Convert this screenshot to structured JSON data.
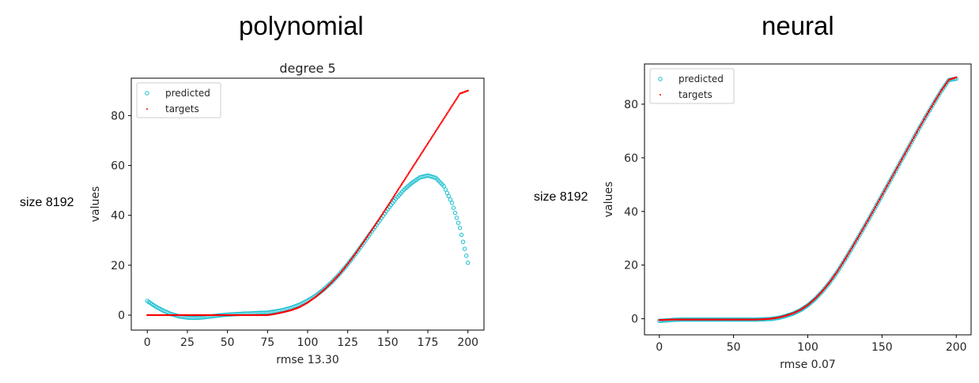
{
  "panels": {
    "left": {
      "heading": "polynomial",
      "side_label": "size 8192"
    },
    "right": {
      "heading": "neural",
      "side_label": "size 8192"
    }
  },
  "colors": {
    "predicted": "#17becf",
    "targets": "#ff0000",
    "axis": "#000000"
  },
  "chart_data": [
    {
      "type": "scatter",
      "title": "degree 5",
      "xlabel": "rmse 13.30",
      "ylabel": "values",
      "xlim": [
        -10,
        210
      ],
      "ylim": [
        -6,
        95
      ],
      "xticks": [
        0,
        25,
        50,
        75,
        100,
        125,
        150,
        175,
        200
      ],
      "yticks": [
        0,
        20,
        40,
        60,
        80
      ],
      "legend": {
        "position": "top-left",
        "entries": [
          "predicted",
          "targets"
        ]
      },
      "grid": false,
      "series": [
        {
          "name": "predicted",
          "marker": "hollow-circle",
          "x": [
            0,
            5,
            10,
            15,
            20,
            25,
            30,
            35,
            40,
            45,
            50,
            55,
            60,
            65,
            70,
            75,
            80,
            85,
            90,
            95,
            100,
            105,
            110,
            115,
            120,
            125,
            130,
            135,
            140,
            145,
            150,
            155,
            160,
            165,
            170,
            175,
            180,
            185,
            190,
            195,
            200
          ],
          "y": [
            5.7,
            3.5,
            1.8,
            0.4,
            -0.5,
            -1.0,
            -1.1,
            -0.9,
            -0.5,
            -0.1,
            0.2,
            0.4,
            0.6,
            0.7,
            0.9,
            1.0,
            1.5,
            2.1,
            3.0,
            4.2,
            5.8,
            7.8,
            10.3,
            13.2,
            16.6,
            20.4,
            24.6,
            29.0,
            33.5,
            38.0,
            42.5,
            46.6,
            50.2,
            53.0,
            55.2,
            56.0,
            55.0,
            51.7,
            45.0,
            35.0,
            21.0
          ]
        },
        {
          "name": "targets",
          "marker": "dot",
          "x": [
            0,
            5,
            10,
            15,
            20,
            25,
            30,
            35,
            40,
            45,
            50,
            55,
            60,
            65,
            70,
            75,
            80,
            85,
            90,
            95,
            100,
            105,
            110,
            115,
            120,
            125,
            130,
            135,
            140,
            145,
            150,
            155,
            160,
            165,
            170,
            175,
            180,
            185,
            190,
            195,
            200
          ],
          "y": [
            0,
            0,
            0,
            0,
            0,
            0,
            0,
            0,
            0,
            0,
            0,
            0,
            0,
            0,
            0,
            0,
            0.5,
            1.2,
            2.0,
            3.2,
            5.0,
            7.3,
            10.0,
            13.1,
            16.5,
            20.5,
            24.8,
            29.4,
            34.1,
            38.9,
            43.8,
            48.8,
            53.8,
            58.8,
            63.8,
            68.8,
            73.8,
            78.8,
            83.8,
            88.8,
            90.0
          ]
        }
      ]
    },
    {
      "type": "scatter",
      "title": "",
      "xlabel": "rmse 0.07",
      "ylabel": "values",
      "xlim": [
        -10,
        210
      ],
      "ylim": [
        -6,
        95
      ],
      "xticks": [
        0,
        50,
        100,
        150,
        200
      ],
      "yticks": [
        0,
        20,
        40,
        60,
        80
      ],
      "legend": {
        "position": "top-left",
        "entries": [
          "predicted",
          "targets"
        ]
      },
      "grid": false,
      "series": [
        {
          "name": "predicted",
          "marker": "hollow-circle",
          "x": [
            0,
            5,
            10,
            15,
            20,
            25,
            30,
            35,
            40,
            45,
            50,
            55,
            60,
            65,
            70,
            75,
            80,
            85,
            90,
            95,
            100,
            105,
            110,
            115,
            120,
            125,
            130,
            135,
            140,
            145,
            150,
            155,
            160,
            165,
            170,
            175,
            180,
            185,
            190,
            195,
            200
          ],
          "y": [
            -0.8,
            -0.6,
            -0.4,
            -0.3,
            -0.3,
            -0.3,
            -0.3,
            -0.3,
            -0.3,
            -0.3,
            -0.3,
            -0.3,
            -0.3,
            -0.3,
            -0.2,
            -0.1,
            0.3,
            1.0,
            1.9,
            3.2,
            5.0,
            7.4,
            10.3,
            13.7,
            17.6,
            22.0,
            26.6,
            31.3,
            36.1,
            41.0,
            46.0,
            51.0,
            56.0,
            61.0,
            66.0,
            71.0,
            75.8,
            80.5,
            85.0,
            89.0,
            89.5
          ]
        },
        {
          "name": "targets",
          "marker": "dot",
          "x": [
            0,
            5,
            10,
            15,
            20,
            25,
            30,
            35,
            40,
            45,
            50,
            55,
            60,
            65,
            70,
            75,
            80,
            85,
            90,
            95,
            100,
            105,
            110,
            115,
            120,
            125,
            130,
            135,
            140,
            145,
            150,
            155,
            160,
            165,
            170,
            175,
            180,
            185,
            190,
            195,
            200
          ],
          "y": [
            -0.5,
            -0.4,
            -0.3,
            -0.3,
            -0.3,
            -0.3,
            -0.3,
            -0.3,
            -0.3,
            -0.3,
            -0.3,
            -0.3,
            -0.3,
            -0.3,
            -0.2,
            0,
            0.4,
            1.1,
            2.0,
            3.3,
            5.1,
            7.5,
            10.4,
            13.8,
            17.7,
            22.1,
            26.7,
            31.4,
            36.2,
            41.1,
            46.1,
            51.1,
            56.1,
            61.1,
            66.1,
            71.1,
            75.9,
            80.6,
            85.1,
            89.1,
            90.0
          ]
        }
      ]
    }
  ]
}
